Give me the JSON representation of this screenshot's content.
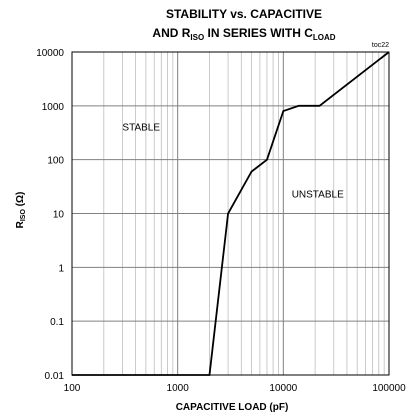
{
  "chart_data": {
    "type": "line",
    "title": {
      "line1": "STABILITY vs. CAPACITIVE",
      "line2_prefix": "AND R",
      "line2_sub1": "ISO",
      "line2_mid": " IN SERIES WITH C",
      "line2_sub2": "LOAD"
    },
    "tag": "toc22",
    "xlabel": "CAPACITIVE LOAD (pF)",
    "ylabel": {
      "prefix": "R",
      "sub": "ISO",
      "suffix": " (Ω)"
    },
    "x_scale": "log",
    "y_scale": "log",
    "xlim": [
      100,
      100000
    ],
    "ylim": [
      0.01,
      10000
    ],
    "x_ticks": [
      100,
      1000,
      10000,
      100000
    ],
    "x_tick_labels": [
      "100",
      "1000",
      "10000",
      "100000"
    ],
    "y_ticks": [
      0.01,
      0.1,
      1,
      10,
      100,
      1000,
      10000
    ],
    "y_tick_labels": [
      "0.01",
      "0.1",
      "1",
      "10",
      "100",
      "1000",
      "10000"
    ],
    "grid": true,
    "regions": [
      {
        "label": "STABLE",
        "x": 300,
        "y": 350
      },
      {
        "label": "UNSTABLE",
        "x": 12000,
        "y": 20
      }
    ],
    "series": [
      {
        "color": "#000000",
        "x": [
          100,
          2000,
          3000,
          5000,
          7000,
          10000,
          14000,
          22000,
          100000
        ],
        "y": [
          0.01,
          0.01,
          10,
          60,
          100,
          800,
          1000,
          1000,
          10000
        ]
      }
    ]
  }
}
